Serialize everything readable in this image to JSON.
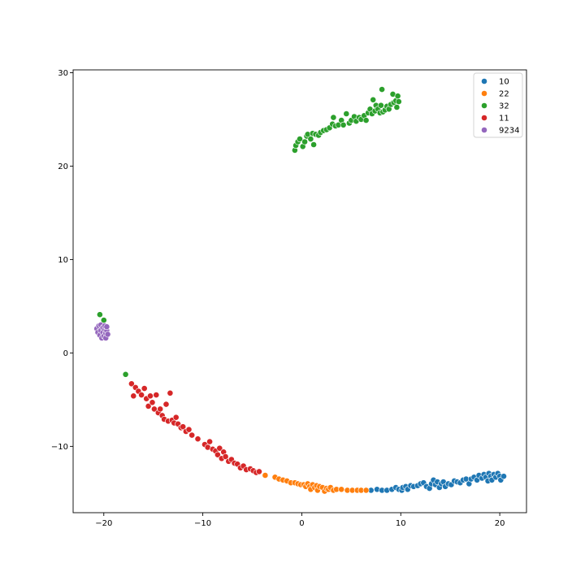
{
  "chart_data": {
    "type": "scatter",
    "title": "",
    "xlabel": "",
    "ylabel": "",
    "xlim": [
      -23.1,
      22.7
    ],
    "ylim": [
      -17.1,
      30.3
    ],
    "xticks": [
      -20,
      -10,
      0,
      10,
      20
    ],
    "yticks": [
      -10,
      0,
      10,
      20,
      30
    ],
    "xtick_labels": [
      "−20",
      "−10",
      "0",
      "10",
      "20"
    ],
    "ytick_labels": [
      "−10",
      "0",
      "10",
      "20",
      "30"
    ],
    "grid": false,
    "legend_position": "top-right",
    "series": [
      {
        "name": "10",
        "color": "#1f77b4",
        "points": [
          [
            7.0,
            -14.7
          ],
          [
            7.6,
            -14.6
          ],
          [
            8.1,
            -14.7
          ],
          [
            8.6,
            -14.7
          ],
          [
            9.1,
            -14.6
          ],
          [
            9.5,
            -14.4
          ],
          [
            9.8,
            -14.6
          ],
          [
            10.1,
            -14.7
          ],
          [
            10.2,
            -14.4
          ],
          [
            10.5,
            -14.3
          ],
          [
            10.7,
            -14.6
          ],
          [
            11.0,
            -14.2
          ],
          [
            11.3,
            -14.3
          ],
          [
            11.7,
            -14.2
          ],
          [
            12.0,
            -14.0
          ],
          [
            12.3,
            -13.9
          ],
          [
            12.6,
            -14.3
          ],
          [
            12.9,
            -14.5
          ],
          [
            13.1,
            -14.0
          ],
          [
            13.3,
            -13.6
          ],
          [
            13.5,
            -14.1
          ],
          [
            13.7,
            -13.8
          ],
          [
            13.9,
            -14.4
          ],
          [
            14.1,
            -14.0
          ],
          [
            14.3,
            -13.8
          ],
          [
            14.5,
            -14.3
          ],
          [
            14.8,
            -14.0
          ],
          [
            15.1,
            -14.1
          ],
          [
            15.4,
            -13.7
          ],
          [
            15.7,
            -13.8
          ],
          [
            16.0,
            -13.9
          ],
          [
            16.3,
            -13.6
          ],
          [
            16.6,
            -13.5
          ],
          [
            16.9,
            -14.0
          ],
          [
            17.1,
            -13.5
          ],
          [
            17.4,
            -13.3
          ],
          [
            17.7,
            -13.6
          ],
          [
            17.9,
            -13.1
          ],
          [
            18.2,
            -13.4
          ],
          [
            18.4,
            -13.0
          ],
          [
            18.6,
            -13.3
          ],
          [
            18.8,
            -13.7
          ],
          [
            18.9,
            -12.9
          ],
          [
            19.1,
            -13.2
          ],
          [
            19.2,
            -13.6
          ],
          [
            19.4,
            -13.0
          ],
          [
            19.6,
            -13.3
          ],
          [
            19.8,
            -12.9
          ],
          [
            20.0,
            -13.2
          ],
          [
            20.1,
            -13.6
          ],
          [
            20.4,
            -13.2
          ]
        ]
      },
      {
        "name": "22",
        "color": "#ff7f0e",
        "points": [
          [
            -3.7,
            -13.1
          ],
          [
            -2.7,
            -13.3
          ],
          [
            -2.3,
            -13.5
          ],
          [
            -1.9,
            -13.6
          ],
          [
            -1.5,
            -13.7
          ],
          [
            -1.1,
            -13.9
          ],
          [
            -0.7,
            -13.9
          ],
          [
            -0.4,
            -14.0
          ],
          [
            -0.1,
            -14.1
          ],
          [
            0.2,
            -14.1
          ],
          [
            0.4,
            -14.3
          ],
          [
            0.6,
            -14.0
          ],
          [
            0.8,
            -14.3
          ],
          [
            0.9,
            -14.6
          ],
          [
            1.1,
            -14.1
          ],
          [
            1.3,
            -14.4
          ],
          [
            1.5,
            -14.2
          ],
          [
            1.6,
            -14.7
          ],
          [
            1.8,
            -14.3
          ],
          [
            2.1,
            -14.4
          ],
          [
            2.3,
            -14.8
          ],
          [
            2.5,
            -14.5
          ],
          [
            2.7,
            -14.6
          ],
          [
            2.9,
            -14.4
          ],
          [
            3.2,
            -14.7
          ],
          [
            3.5,
            -14.6
          ],
          [
            4.0,
            -14.6
          ],
          [
            4.6,
            -14.7
          ],
          [
            5.1,
            -14.7
          ],
          [
            5.6,
            -14.7
          ],
          [
            6.0,
            -14.7
          ],
          [
            6.5,
            -14.7
          ]
        ]
      },
      {
        "name": "32",
        "color": "#2ca02c",
        "points": [
          [
            -20.4,
            4.1
          ],
          [
            -20.0,
            3.5
          ],
          [
            -17.8,
            -2.3
          ],
          [
            -0.7,
            21.7
          ],
          [
            -0.6,
            22.2
          ],
          [
            -0.4,
            22.6
          ],
          [
            -0.2,
            22.9
          ],
          [
            0.1,
            22.1
          ],
          [
            0.3,
            22.6
          ],
          [
            0.5,
            23.2
          ],
          [
            0.6,
            23.4
          ],
          [
            0.9,
            22.9
          ],
          [
            1.1,
            23.5
          ],
          [
            1.2,
            22.3
          ],
          [
            1.4,
            23.4
          ],
          [
            1.7,
            23.3
          ],
          [
            1.9,
            23.6
          ],
          [
            2.2,
            23.8
          ],
          [
            2.5,
            23.9
          ],
          [
            2.8,
            24.1
          ],
          [
            3.1,
            24.5
          ],
          [
            3.2,
            25.2
          ],
          [
            3.4,
            24.3
          ],
          [
            3.7,
            24.4
          ],
          [
            4.0,
            24.9
          ],
          [
            4.2,
            24.4
          ],
          [
            4.5,
            25.6
          ],
          [
            4.8,
            24.6
          ],
          [
            5.0,
            24.9
          ],
          [
            5.3,
            25.3
          ],
          [
            5.5,
            24.8
          ],
          [
            5.8,
            25.2
          ],
          [
            6.0,
            25.0
          ],
          [
            6.3,
            25.4
          ],
          [
            6.5,
            24.9
          ],
          [
            6.7,
            25.7
          ],
          [
            6.9,
            26.1
          ],
          [
            7.1,
            25.6
          ],
          [
            7.2,
            27.1
          ],
          [
            7.4,
            25.9
          ],
          [
            7.5,
            26.5
          ],
          [
            7.7,
            26.1
          ],
          [
            7.9,
            25.7
          ],
          [
            8.0,
            26.5
          ],
          [
            8.1,
            28.2
          ],
          [
            8.2,
            25.8
          ],
          [
            8.4,
            26.0
          ],
          [
            8.6,
            26.4
          ],
          [
            8.8,
            26.1
          ],
          [
            9.0,
            26.6
          ],
          [
            9.2,
            27.7
          ],
          [
            9.3,
            26.8
          ],
          [
            9.5,
            27.0
          ],
          [
            9.6,
            26.3
          ],
          [
            9.7,
            27.5
          ],
          [
            9.8,
            26.9
          ]
        ]
      },
      {
        "name": "11",
        "color": "#d62728",
        "points": [
          [
            -17.2,
            -3.3
          ],
          [
            -16.8,
            -3.7
          ],
          [
            -17.0,
            -4.6
          ],
          [
            -16.5,
            -4.1
          ],
          [
            -16.2,
            -4.5
          ],
          [
            -15.9,
            -3.8
          ],
          [
            -15.7,
            -4.9
          ],
          [
            -15.5,
            -5.7
          ],
          [
            -15.3,
            -4.6
          ],
          [
            -15.1,
            -5.3
          ],
          [
            -14.9,
            -6.0
          ],
          [
            -14.7,
            -4.5
          ],
          [
            -14.5,
            -6.4
          ],
          [
            -14.3,
            -6.0
          ],
          [
            -14.1,
            -6.7
          ],
          [
            -13.9,
            -7.1
          ],
          [
            -13.7,
            -5.5
          ],
          [
            -13.5,
            -7.3
          ],
          [
            -13.3,
            -4.3
          ],
          [
            -13.1,
            -7.2
          ],
          [
            -12.9,
            -7.5
          ],
          [
            -12.7,
            -6.9
          ],
          [
            -12.5,
            -7.6
          ],
          [
            -12.2,
            -8.0
          ],
          [
            -12.0,
            -7.9
          ],
          [
            -11.7,
            -8.4
          ],
          [
            -11.4,
            -8.2
          ],
          [
            -11.1,
            -8.8
          ],
          [
            -10.5,
            -9.2
          ],
          [
            -9.8,
            -9.8
          ],
          [
            -9.5,
            -10.1
          ],
          [
            -9.3,
            -9.5
          ],
          [
            -9.0,
            -10.3
          ],
          [
            -8.7,
            -10.5
          ],
          [
            -8.5,
            -10.9
          ],
          [
            -8.3,
            -10.2
          ],
          [
            -8.1,
            -11.3
          ],
          [
            -7.9,
            -10.6
          ],
          [
            -7.7,
            -11.1
          ],
          [
            -7.4,
            -11.6
          ],
          [
            -7.1,
            -11.4
          ],
          [
            -6.8,
            -11.8
          ],
          [
            -6.5,
            -11.9
          ],
          [
            -6.2,
            -12.3
          ],
          [
            -5.9,
            -12.1
          ],
          [
            -5.6,
            -12.5
          ],
          [
            -5.2,
            -12.4
          ],
          [
            -4.9,
            -12.6
          ],
          [
            -4.6,
            -12.8
          ],
          [
            -4.3,
            -12.7
          ]
        ]
      },
      {
        "name": "9234",
        "color": "#9467bd",
        "points": [
          [
            -20.7,
            2.6
          ],
          [
            -20.6,
            2.2
          ],
          [
            -20.5,
            2.9
          ],
          [
            -20.4,
            1.9
          ],
          [
            -20.3,
            2.4
          ],
          [
            -20.3,
            3.0
          ],
          [
            -20.2,
            1.6
          ],
          [
            -20.1,
            2.7
          ],
          [
            -20.1,
            2.2
          ],
          [
            -20.0,
            1.8
          ],
          [
            -19.9,
            2.5
          ],
          [
            -19.9,
            2.9
          ],
          [
            -19.8,
            2.1
          ],
          [
            -19.8,
            1.6
          ],
          [
            -19.7,
            2.4
          ],
          [
            -19.7,
            2.8
          ],
          [
            -19.6,
            2.0
          ]
        ]
      }
    ]
  }
}
